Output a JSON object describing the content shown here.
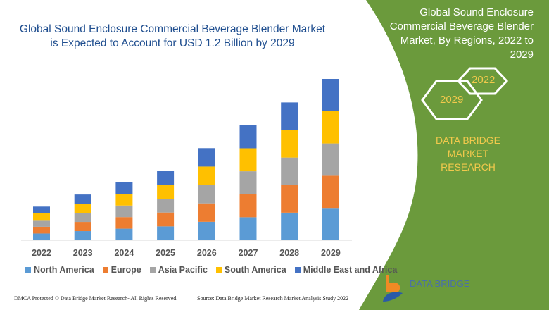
{
  "header": {
    "title_line1": "Global Sound Enclosure Commercial Beverage Blender Market",
    "title_line2": "is Expected to Account for USD 1.2 Billion by 2029"
  },
  "side_panel": {
    "title_lines": [
      "Global Sound Enclosure",
      "Commercial Beverage Blender",
      "Market, By Regions, 2022 to",
      "2029"
    ],
    "hex_start": "2022",
    "hex_end": "2029",
    "brand_line1": "DATA BRIDGE MARKET",
    "brand_line2": "RESEARCH",
    "color": "#6b9a3c"
  },
  "footer": {
    "dmca": "DMCA Protected © Data Bridge Market Research- All Rights Reserved.",
    "source": "Source: Data Bridge Market Research Market Analysis Study 2022",
    "logo_text": "DATA BRIDGE"
  },
  "chart_data": {
    "type": "bar",
    "stacked": true,
    "grid": false,
    "legend_position": "bottom",
    "categories": [
      "2022",
      "2023",
      "2024",
      "2025",
      "2026",
      "2027",
      "2028",
      "2029"
    ],
    "series": [
      {
        "name": "North America",
        "color": "#5b9bd5",
        "values": [
          0.05,
          0.068,
          0.086,
          0.103,
          0.137,
          0.171,
          0.205,
          0.24
        ]
      },
      {
        "name": "Europe",
        "color": "#ed7d31",
        "values": [
          0.05,
          0.068,
          0.086,
          0.103,
          0.137,
          0.171,
          0.205,
          0.24
        ]
      },
      {
        "name": "Asia Pacific",
        "color": "#a5a5a5",
        "values": [
          0.05,
          0.068,
          0.086,
          0.103,
          0.137,
          0.171,
          0.205,
          0.24
        ]
      },
      {
        "name": "South America",
        "color": "#ffc000",
        "values": [
          0.05,
          0.068,
          0.086,
          0.103,
          0.137,
          0.171,
          0.205,
          0.24
        ]
      },
      {
        "name": "Middle East and Africa",
        "color": "#4472c4",
        "values": [
          0.05,
          0.068,
          0.086,
          0.103,
          0.137,
          0.171,
          0.205,
          0.24
        ]
      }
    ],
    "ylim": [
      0,
      1.2
    ]
  }
}
